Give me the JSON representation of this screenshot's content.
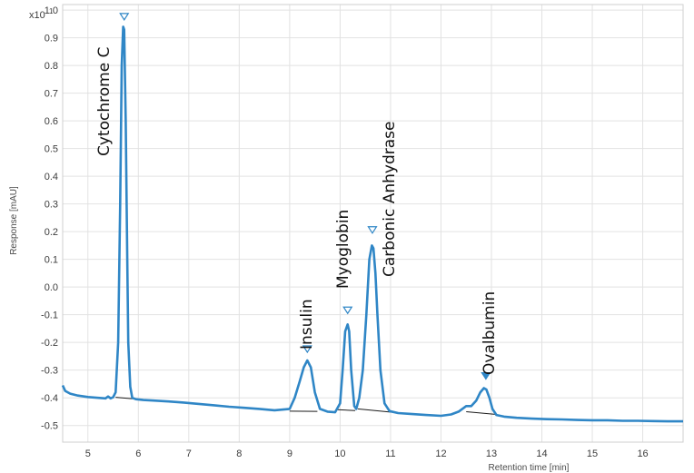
{
  "chart_data": {
    "type": "line",
    "ylabel": "Response [mAU]",
    "xlabel": "Retention time [min]",
    "scale_factor": {
      "base": "x10",
      "exponent": "1"
    },
    "xlim": [
      4.5,
      16.8
    ],
    "ylim": [
      -0.56,
      1.02
    ],
    "x_ticks": [
      5,
      6,
      7,
      8,
      9,
      10,
      11,
      12,
      13,
      14,
      15,
      16
    ],
    "y_ticks": [
      "1.0",
      "0.9",
      "0.8",
      "0.7",
      "0.6",
      "0.5",
      "0.4",
      "0.3",
      "0.2",
      "0.1",
      "0.0",
      "-0.1",
      "-0.2",
      "-0.3",
      "-0.4",
      "-0.5"
    ],
    "grid": true,
    "colors": {
      "trace": "#2f86c6",
      "baseline": "#1a1a1a",
      "grid": "#e2e2e2",
      "frame": "#cfcfcf",
      "marker": "#2f86c6"
    },
    "series": [
      {
        "x": [
          4.5,
          4.55,
          4.65,
          4.8,
          5.0,
          5.2,
          5.35,
          5.4,
          5.45,
          5.5,
          5.55,
          5.6,
          5.64,
          5.67,
          5.7,
          5.72,
          5.75,
          5.78,
          5.8,
          5.84,
          5.88,
          5.95,
          6.1,
          6.3,
          6.6,
          6.9,
          7.2,
          7.5,
          7.8,
          8.1,
          8.4,
          8.7,
          9.0,
          9.1,
          9.2,
          9.28,
          9.35,
          9.42,
          9.5,
          9.6,
          9.75,
          9.9,
          10.0,
          10.05,
          10.1,
          10.15,
          10.18,
          10.22,
          10.28,
          10.32,
          10.38,
          10.45,
          10.52,
          10.58,
          10.63,
          10.66,
          10.7,
          10.74,
          10.8,
          10.88,
          10.98,
          11.15,
          11.4,
          11.7,
          12.0,
          12.2,
          12.35,
          12.5,
          12.6,
          12.7,
          12.78,
          12.85,
          12.9,
          12.96,
          13.02,
          13.1,
          13.25,
          13.5,
          13.8,
          14.1,
          14.4,
          14.7,
          15.0,
          15.3,
          15.6,
          15.9,
          16.2,
          16.5,
          16.8
        ],
        "y": [
          -0.355,
          -0.375,
          -0.385,
          -0.392,
          -0.397,
          -0.4,
          -0.402,
          -0.395,
          -0.402,
          -0.398,
          -0.38,
          -0.2,
          0.3,
          0.8,
          0.94,
          0.93,
          0.6,
          0.1,
          -0.2,
          -0.36,
          -0.4,
          -0.405,
          -0.408,
          -0.41,
          -0.413,
          -0.417,
          -0.422,
          -0.427,
          -0.432,
          -0.436,
          -0.44,
          -0.445,
          -0.44,
          -0.4,
          -0.34,
          -0.29,
          -0.265,
          -0.29,
          -0.38,
          -0.44,
          -0.45,
          -0.452,
          -0.42,
          -0.3,
          -0.16,
          -0.135,
          -0.16,
          -0.3,
          -0.43,
          -0.44,
          -0.4,
          -0.3,
          -0.1,
          0.1,
          0.15,
          0.14,
          0.05,
          -0.1,
          -0.3,
          -0.42,
          -0.448,
          -0.455,
          -0.458,
          -0.462,
          -0.465,
          -0.46,
          -0.45,
          -0.43,
          -0.43,
          -0.41,
          -0.38,
          -0.365,
          -0.37,
          -0.4,
          -0.44,
          -0.462,
          -0.468,
          -0.472,
          -0.475,
          -0.477,
          -0.478,
          -0.48,
          -0.481,
          -0.481,
          -0.483,
          -0.483,
          -0.484,
          -0.485,
          -0.485
        ]
      }
    ],
    "baseline_segments": [
      {
        "x": [
          5.55,
          6.0
        ],
        "y": [
          -0.398,
          -0.405
        ]
      },
      {
        "x": [
          9.0,
          9.55
        ],
        "y": [
          -0.448,
          -0.449
        ]
      },
      {
        "x": [
          9.95,
          10.3
        ],
        "y": [
          -0.443,
          -0.446
        ]
      },
      {
        "x": [
          10.35,
          11.2
        ],
        "y": [
          -0.44,
          -0.455
        ]
      },
      {
        "x": [
          12.5,
          13.1
        ],
        "y": [
          -0.45,
          -0.46
        ]
      }
    ],
    "peaks": [
      {
        "name": "Cytochrome C",
        "x": 5.72,
        "y": 0.945,
        "marker": "open"
      },
      {
        "name": "Insulin",
        "x": 9.35,
        "y": -0.255,
        "marker": "open"
      },
      {
        "name": "Myoglobin",
        "x": 10.15,
        "y": -0.115,
        "marker": "open"
      },
      {
        "name": "Carbonic Anhydrase",
        "x": 10.64,
        "y": 0.175,
        "marker": "open"
      },
      {
        "name": "Ovalbumin",
        "x": 12.89,
        "y": -0.352,
        "marker": "filled"
      }
    ]
  }
}
